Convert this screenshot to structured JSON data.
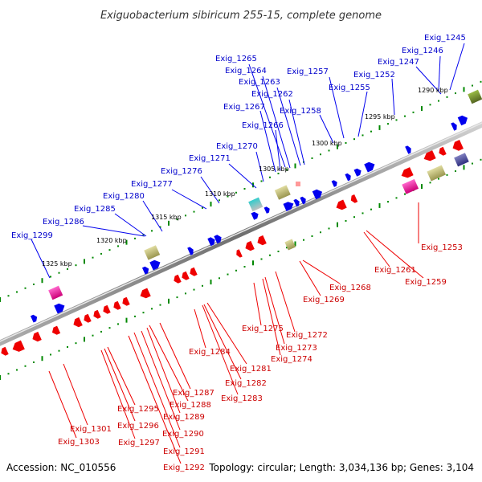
{
  "title": "Exiguobacterium sibiricum 255-15, complete genome",
  "accession": "Accession: NC_010556",
  "topology": "Topology: circular; Length: 3,034,136 bp; Genes: 3,104",
  "kbp_labels": [
    "1290 kbp",
    "1295 kbp",
    "1300 kbp",
    "1305 kbp",
    "1310 kbp",
    "1315 kbp",
    "1320 kbp",
    "1325 kbp"
  ],
  "top_gene_labels": [
    "Exig_1245",
    "Exig_1246",
    "Exig_1247",
    "Exig_1252",
    "Exig_1255",
    "Exig_1257",
    "Exig_1258",
    "Exig_1262",
    "Exig_1263",
    "Exig_1264",
    "Exig_1265",
    "Exig_1266",
    "Exig_1267",
    "Exig_1270",
    "Exig_1271",
    "Exig_1276",
    "Exig_1277",
    "Exig_1280",
    "Exig_1285",
    "Exig_1286",
    "Exig_1299"
  ],
  "bottom_gene_labels": [
    "Exig_1253",
    "Exig_1259",
    "Exig_1261",
    "Exig_1268",
    "Exig_1269",
    "Exig_1272",
    "Exig_1273",
    "Exig_1274",
    "Exig_1275",
    "Exig_1281",
    "Exig_1282",
    "Exig_1283",
    "Exig_1284",
    "Exig_1287",
    "Exig_1288",
    "Exig_1289",
    "Exig_1290",
    "Exig_1291",
    "Exig_1292",
    "Exig_1295",
    "Exig_1296",
    "Exig_1297",
    "Exig_1301",
    "Exig_1303"
  ],
  "colors": {
    "top_strand": "#0000ee",
    "bottom_strand": "#ee0000",
    "backbone": "#808080",
    "tick": "#008800"
  }
}
